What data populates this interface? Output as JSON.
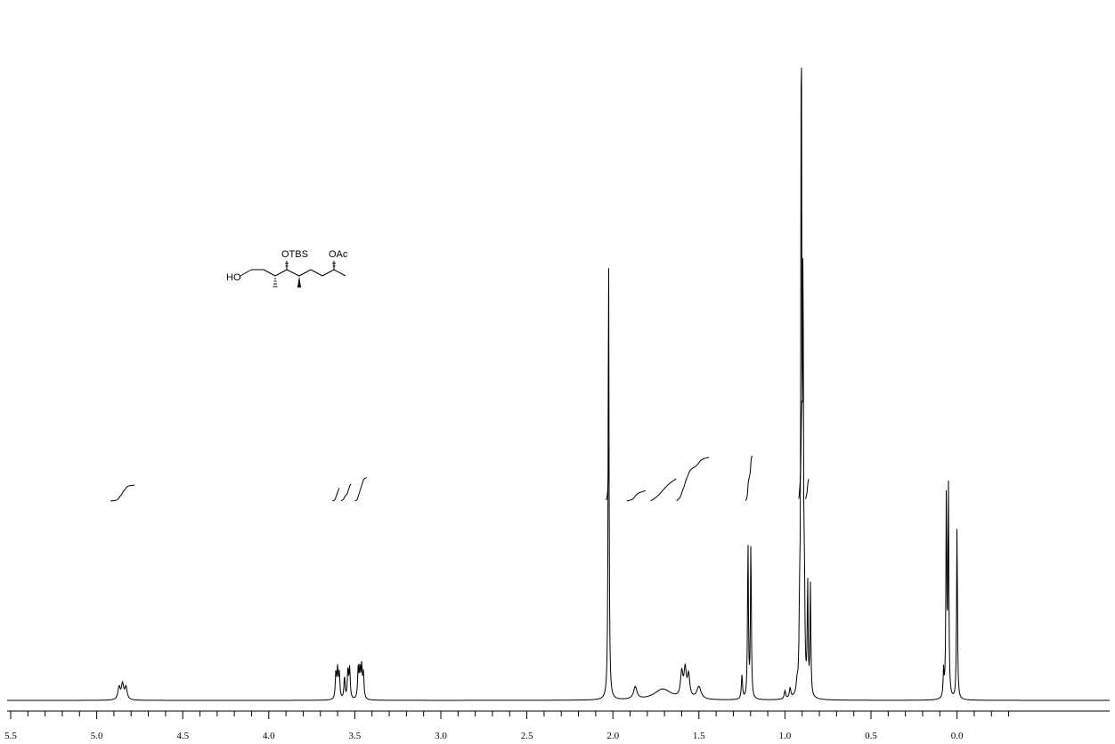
{
  "chart_data": {
    "type": "line",
    "title": "",
    "xlabel": "",
    "ylabel": "",
    "x_axis": {
      "reversed": true,
      "range": [
        5.5,
        -0.35
      ],
      "tick_labels": [
        "5.5",
        "5.0",
        "4.5",
        "4.0",
        "3.5",
        "3.0",
        "2.5",
        "2.0",
        "1.5",
        "1.0",
        "0.5",
        "0.0"
      ],
      "major_step": 0.5,
      "minor_step": 0.1
    },
    "y_axis": {
      "visible": false,
      "range": [
        0,
        100
      ]
    },
    "grid": false,
    "peaks": [
      {
        "ppm": 4.87,
        "height": 1.8,
        "width": 0.008
      },
      {
        "ppm": 4.85,
        "height": 2.2,
        "width": 0.008
      },
      {
        "ppm": 4.83,
        "height": 1.8,
        "width": 0.008
      },
      {
        "ppm": 3.61,
        "height": 3.8,
        "width": 0.004
      },
      {
        "ppm": 3.6,
        "height": 4.2,
        "width": 0.004
      },
      {
        "ppm": 3.59,
        "height": 3.6,
        "width": 0.004
      },
      {
        "ppm": 3.56,
        "height": 3.2,
        "width": 0.004
      },
      {
        "ppm": 3.54,
        "height": 4.2,
        "width": 0.004
      },
      {
        "ppm": 3.53,
        "height": 4.4,
        "width": 0.004
      },
      {
        "ppm": 3.48,
        "height": 4.6,
        "width": 0.004
      },
      {
        "ppm": 3.47,
        "height": 4.1,
        "width": 0.004
      },
      {
        "ppm": 3.46,
        "height": 4.5,
        "width": 0.004
      },
      {
        "ppm": 3.45,
        "height": 3.6,
        "width": 0.004
      },
      {
        "ppm": 2.025,
        "height": 66,
        "width": 0.003
      },
      {
        "ppm": 1.87,
        "height": 1.8,
        "width": 0.012
      },
      {
        "ppm": 1.71,
        "height": 1.6,
        "width": 0.06
      },
      {
        "ppm": 1.6,
        "height": 3.6,
        "width": 0.008
      },
      {
        "ppm": 1.58,
        "height": 4.0,
        "width": 0.008
      },
      {
        "ppm": 1.56,
        "height": 3.2,
        "width": 0.008
      },
      {
        "ppm": 1.5,
        "height": 1.8,
        "width": 0.015
      },
      {
        "ppm": 1.25,
        "height": 3.5,
        "width": 0.004
      },
      {
        "ppm": 1.215,
        "height": 23,
        "width": 0.003
      },
      {
        "ppm": 1.198,
        "height": 23,
        "width": 0.003
      },
      {
        "ppm": 1.0,
        "height": 1.2,
        "width": 0.005
      },
      {
        "ppm": 0.97,
        "height": 1.5,
        "width": 0.005
      },
      {
        "ppm": 0.93,
        "height": 1.4,
        "width": 0.005
      },
      {
        "ppm": 0.915,
        "height": 9,
        "width": 0.003
      },
      {
        "ppm": 0.905,
        "height": 100,
        "width": 0.003
      },
      {
        "ppm": 0.895,
        "height": 58,
        "width": 0.003
      },
      {
        "ppm": 0.887,
        "height": 13,
        "width": 0.003
      },
      {
        "ppm": 0.868,
        "height": 16,
        "width": 0.003
      },
      {
        "ppm": 0.852,
        "height": 16,
        "width": 0.003
      },
      {
        "ppm": 0.078,
        "height": 3.8,
        "width": 0.003
      },
      {
        "ppm": 0.062,
        "height": 30,
        "width": 0.003
      },
      {
        "ppm": 0.05,
        "height": 30.5,
        "width": 0.003
      },
      {
        "ppm": 0.0,
        "height": 25.5,
        "width": 0.003
      }
    ],
    "integrals": [
      {
        "from": 4.92,
        "to": 4.78
      },
      {
        "from": 3.63,
        "to": 3.59
      },
      {
        "from": 3.58,
        "to": 3.52
      },
      {
        "from": 3.5,
        "to": 3.43
      },
      {
        "from": 2.04,
        "to": 2.02
      },
      {
        "from": 1.92,
        "to": 1.81
      },
      {
        "from": 1.78,
        "to": 1.63
      },
      {
        "from": 1.63,
        "to": 1.44
      },
      {
        "from": 1.23,
        "to": 1.19
      },
      {
        "from": 0.92,
        "to": 0.9
      },
      {
        "from": 0.88,
        "to": 0.86
      }
    ]
  },
  "structure": {
    "labels": {
      "ho": "HO",
      "otbs": "OTBS",
      "oac": "OAc"
    }
  }
}
